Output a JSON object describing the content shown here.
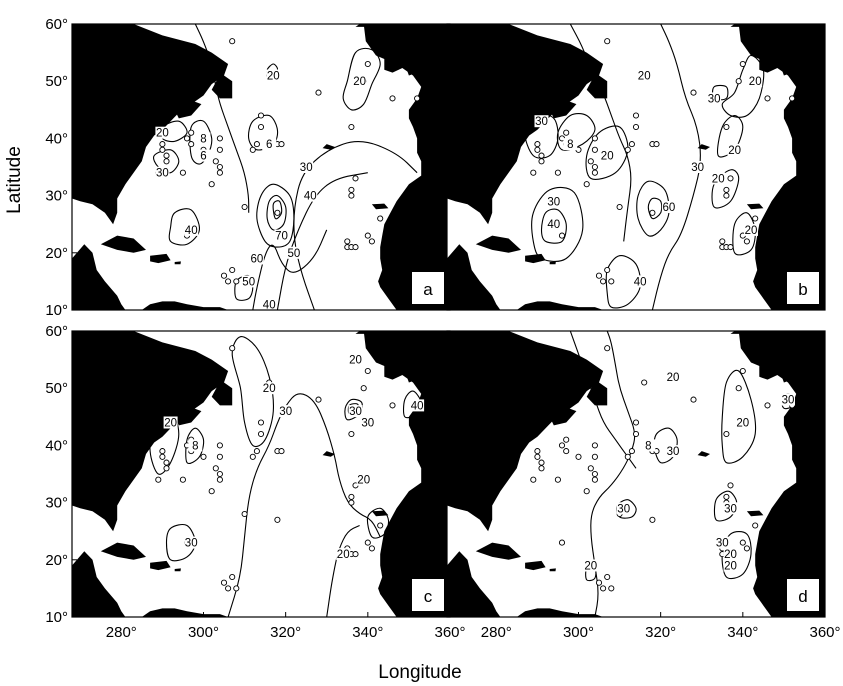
{
  "figure": {
    "xlabel": "Longitude",
    "ylabel": "Latitude",
    "x_ticks": [
      "280°",
      "300°",
      "320°",
      "340°",
      "360°"
    ],
    "y_ticks": [
      "10°",
      "20°",
      "30°",
      "40°",
      "50°",
      "60°"
    ],
    "land_color": "#000000",
    "ocean_color": "#ffffff"
  },
  "chart_data": {
    "type": "contour-map",
    "xlim": [
      268,
      360
    ],
    "ylim": [
      10,
      60
    ],
    "panels": [
      {
        "id": "a",
        "label": "a",
        "contour_labels": [
          {
            "text": "20",
            "lon": 317,
            "lat": 51
          },
          {
            "text": "20",
            "lon": 338,
            "lat": 50
          },
          {
            "text": "20",
            "lon": 290,
            "lat": 41
          },
          {
            "text": "8",
            "lon": 300,
            "lat": 40
          },
          {
            "text": "6",
            "lon": 300,
            "lat": 37
          },
          {
            "text": "6",
            "lon": 316,
            "lat": 39
          },
          {
            "text": "30",
            "lon": 290,
            "lat": 34
          },
          {
            "text": "30",
            "lon": 325,
            "lat": 35
          },
          {
            "text": "40",
            "lon": 326,
            "lat": 30
          },
          {
            "text": "40",
            "lon": 297,
            "lat": 24
          },
          {
            "text": "70",
            "lon": 319,
            "lat": 23
          },
          {
            "text": "60",
            "lon": 313,
            "lat": 19
          },
          {
            "text": "50",
            "lon": 322,
            "lat": 20
          },
          {
            "text": "50",
            "lon": 311,
            "lat": 15
          },
          {
            "text": "40",
            "lon": 316,
            "lat": 11
          }
        ]
      },
      {
        "id": "b",
        "label": "b",
        "contour_labels": [
          {
            "text": "20",
            "lon": 316,
            "lat": 51
          },
          {
            "text": "20",
            "lon": 343,
            "lat": 50
          },
          {
            "text": "30",
            "lon": 333,
            "lat": 47
          },
          {
            "text": "30",
            "lon": 291,
            "lat": 43
          },
          {
            "text": "8",
            "lon": 298,
            "lat": 39
          },
          {
            "text": "20",
            "lon": 307,
            "lat": 37
          },
          {
            "text": "20",
            "lon": 338,
            "lat": 38
          },
          {
            "text": "30",
            "lon": 329,
            "lat": 35
          },
          {
            "text": "20",
            "lon": 334,
            "lat": 33
          },
          {
            "text": "30",
            "lon": 294,
            "lat": 29
          },
          {
            "text": "40",
            "lon": 294,
            "lat": 25
          },
          {
            "text": "60",
            "lon": 322,
            "lat": 28
          },
          {
            "text": "20",
            "lon": 342,
            "lat": 24
          },
          {
            "text": "40",
            "lon": 315,
            "lat": 15
          }
        ]
      },
      {
        "id": "c",
        "label": "c",
        "contour_labels": [
          {
            "text": "20",
            "lon": 337,
            "lat": 55
          },
          {
            "text": "20",
            "lon": 316,
            "lat": 50
          },
          {
            "text": "30",
            "lon": 320,
            "lat": 46
          },
          {
            "text": "30",
            "lon": 337,
            "lat": 46
          },
          {
            "text": "40",
            "lon": 352,
            "lat": 47
          },
          {
            "text": "30",
            "lon": 340,
            "lat": 44
          },
          {
            "text": "20",
            "lon": 292,
            "lat": 44
          },
          {
            "text": "8",
            "lon": 298,
            "lat": 40
          },
          {
            "text": "20",
            "lon": 339,
            "lat": 34
          },
          {
            "text": "30",
            "lon": 297,
            "lat": 23
          },
          {
            "text": "20",
            "lon": 334,
            "lat": 21
          }
        ]
      },
      {
        "id": "d",
        "label": "d",
        "contour_labels": [
          {
            "text": "20",
            "lon": 323,
            "lat": 52
          },
          {
            "text": "30",
            "lon": 351,
            "lat": 48
          },
          {
            "text": "20",
            "lon": 340,
            "lat": 44
          },
          {
            "text": "30",
            "lon": 323,
            "lat": 39
          },
          {
            "text": "8",
            "lon": 317,
            "lat": 40
          },
          {
            "text": "30",
            "lon": 311,
            "lat": 29
          },
          {
            "text": "30",
            "lon": 337,
            "lat": 29
          },
          {
            "text": "30",
            "lon": 335,
            "lat": 23
          },
          {
            "text": "20",
            "lon": 337,
            "lat": 21
          },
          {
            "text": "20",
            "lon": 337,
            "lat": 19
          },
          {
            "text": "20",
            "lon": 303,
            "lat": 19
          }
        ]
      }
    ],
    "stations": [
      {
        "lon": 307,
        "lat": 57
      },
      {
        "lon": 316,
        "lat": 51
      },
      {
        "lon": 328,
        "lat": 48
      },
      {
        "lon": 340,
        "lat": 53
      },
      {
        "lon": 339,
        "lat": 50
      },
      {
        "lon": 346,
        "lat": 47
      },
      {
        "lon": 352,
        "lat": 47
      },
      {
        "lon": 336,
        "lat": 42
      },
      {
        "lon": 314,
        "lat": 44
      },
      {
        "lon": 314,
        "lat": 42
      },
      {
        "lon": 313,
        "lat": 39
      },
      {
        "lon": 312,
        "lat": 38
      },
      {
        "lon": 318,
        "lat": 39
      },
      {
        "lon": 319,
        "lat": 39
      },
      {
        "lon": 300,
        "lat": 38
      },
      {
        "lon": 304,
        "lat": 40
      },
      {
        "lon": 304,
        "lat": 38
      },
      {
        "lon": 303,
        "lat": 36
      },
      {
        "lon": 304,
        "lat": 35
      },
      {
        "lon": 304,
        "lat": 34
      },
      {
        "lon": 302,
        "lat": 32
      },
      {
        "lon": 297,
        "lat": 41
      },
      {
        "lon": 296,
        "lat": 40
      },
      {
        "lon": 297,
        "lat": 39
      },
      {
        "lon": 290,
        "lat": 39
      },
      {
        "lon": 290,
        "lat": 38
      },
      {
        "lon": 291,
        "lat": 37
      },
      {
        "lon": 291,
        "lat": 36
      },
      {
        "lon": 289,
        "lat": 34
      },
      {
        "lon": 295,
        "lat": 34
      },
      {
        "lon": 296,
        "lat": 23
      },
      {
        "lon": 310,
        "lat": 28
      },
      {
        "lon": 318,
        "lat": 27
      },
      {
        "lon": 337,
        "lat": 33
      },
      {
        "lon": 336,
        "lat": 31
      },
      {
        "lon": 336,
        "lat": 30
      },
      {
        "lon": 343,
        "lat": 26
      },
      {
        "lon": 340,
        "lat": 23
      },
      {
        "lon": 341,
        "lat": 22
      },
      {
        "lon": 335,
        "lat": 22
      },
      {
        "lon": 335,
        "lat": 21
      },
      {
        "lon": 336,
        "lat": 21
      },
      {
        "lon": 337,
        "lat": 21
      },
      {
        "lon": 307,
        "lat": 17
      },
      {
        "lon": 306,
        "lat": 15
      },
      {
        "lon": 308,
        "lat": 15
      },
      {
        "lon": 305,
        "lat": 16
      }
    ]
  }
}
